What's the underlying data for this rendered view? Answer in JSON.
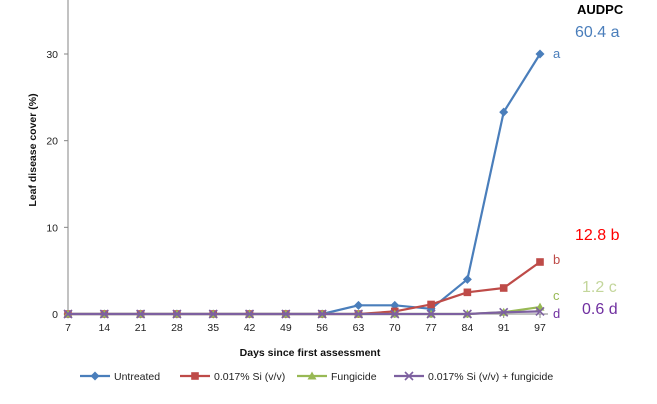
{
  "chart_data": {
    "type": "line",
    "title": "",
    "xlabel": "Days since first assessment",
    "ylabel": "Leaf disease cover (%)",
    "x": [
      7,
      14,
      21,
      28,
      35,
      42,
      49,
      56,
      63,
      70,
      77,
      84,
      91,
      97
    ],
    "ylim": [
      0,
      35
    ],
    "yticks": [
      0,
      10,
      20,
      30
    ],
    "grid": false,
    "legend_position": "bottom",
    "series": [
      {
        "name": "Untreated",
        "color": "#4a7ebb",
        "marker": "diamond",
        "values": [
          0,
          0,
          0,
          0,
          0,
          0,
          0,
          0,
          1,
          1,
          0.6,
          4,
          23.3,
          30
        ],
        "letter": "a",
        "letter_color": "#4a7ebb"
      },
      {
        "name": "0.017% Si (v/v)",
        "color": "#be4b48",
        "marker": "square",
        "values": [
          0,
          0,
          0,
          0,
          0,
          0,
          0,
          0,
          0,
          0.3,
          1.1,
          2.5,
          3,
          6
        ],
        "letter": "b",
        "letter_color": "#be4b48"
      },
      {
        "name": "Fungicide",
        "color": "#98b954",
        "marker": "triangle",
        "values": [
          0,
          0,
          0,
          0,
          0,
          0,
          0,
          0,
          0,
          0,
          0,
          0,
          0.2,
          0.8
        ],
        "letter": "c",
        "letter_color": "#98b954"
      },
      {
        "name": "0.017% Si (v/v) + fungicide",
        "color": "#7d60a0",
        "marker": "x",
        "values": [
          0,
          0,
          0,
          0,
          0,
          0,
          0,
          0,
          0,
          0,
          0,
          0,
          0.2,
          0.3
        ],
        "letter": "d",
        "letter_color": "#7030a0"
      }
    ],
    "audpc": {
      "title": "AUDPC",
      "values": [
        {
          "text": "60.4 a",
          "color": "#4a7ebb"
        },
        {
          "text": "12.8 b",
          "color": "#ff0000"
        },
        {
          "text": "1.2 c",
          "color": "#c3d69b"
        },
        {
          "text": "0.6 d",
          "color": "#7030a0"
        }
      ]
    }
  }
}
